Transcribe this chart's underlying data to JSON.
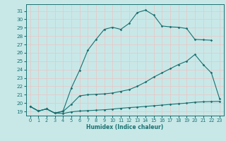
{
  "xlabel": "Humidex (Indice chaleur)",
  "xlim": [
    -0.5,
    23.5
  ],
  "ylim": [
    18.5,
    31.8
  ],
  "xticks": [
    0,
    1,
    2,
    3,
    4,
    5,
    6,
    7,
    8,
    9,
    10,
    11,
    12,
    13,
    14,
    15,
    16,
    17,
    18,
    19,
    20,
    21,
    22,
    23
  ],
  "yticks": [
    19,
    20,
    21,
    22,
    23,
    24,
    25,
    26,
    27,
    28,
    29,
    30,
    31
  ],
  "bg_color": "#c8e8e8",
  "line_color": "#1a7070",
  "grid_color": "#e8c8c8",
  "curve_bot_x": [
    0,
    1,
    2,
    3,
    4,
    5,
    6,
    7,
    8,
    9,
    10,
    11,
    12,
    13,
    14,
    15,
    16,
    17,
    18,
    19,
    20,
    21,
    22,
    23
  ],
  "curve_bot_y": [
    19.6,
    19.05,
    19.3,
    18.8,
    18.75,
    18.95,
    19.05,
    19.1,
    19.15,
    19.2,
    19.28,
    19.38,
    19.46,
    19.52,
    19.6,
    19.68,
    19.76,
    19.84,
    19.92,
    20.0,
    20.1,
    20.15,
    20.18,
    20.2
  ],
  "curve_mid_x": [
    0,
    1,
    2,
    3,
    4,
    5,
    6,
    7,
    8,
    9,
    10,
    11,
    12,
    13,
    14,
    15,
    16,
    17,
    18,
    19,
    20,
    21,
    22,
    23
  ],
  "curve_mid_y": [
    19.6,
    19.05,
    19.3,
    18.8,
    19.0,
    19.85,
    20.85,
    21.0,
    21.05,
    21.1,
    21.2,
    21.4,
    21.6,
    22.0,
    22.5,
    23.1,
    23.6,
    24.1,
    24.6,
    25.0,
    25.8,
    24.6,
    23.6,
    20.5
  ],
  "curve_top_x": [
    0,
    1,
    2,
    3,
    4,
    5,
    6,
    7,
    8,
    9,
    10,
    11,
    12,
    13,
    14,
    15,
    16,
    17,
    18,
    19,
    20,
    21,
    22
  ],
  "curve_top_y": [
    19.6,
    19.05,
    19.3,
    18.8,
    19.05,
    21.8,
    23.9,
    26.3,
    27.6,
    28.8,
    29.05,
    28.8,
    29.5,
    30.8,
    31.1,
    30.5,
    29.2,
    29.1,
    29.05,
    28.9,
    27.6,
    27.55,
    27.5
  ]
}
